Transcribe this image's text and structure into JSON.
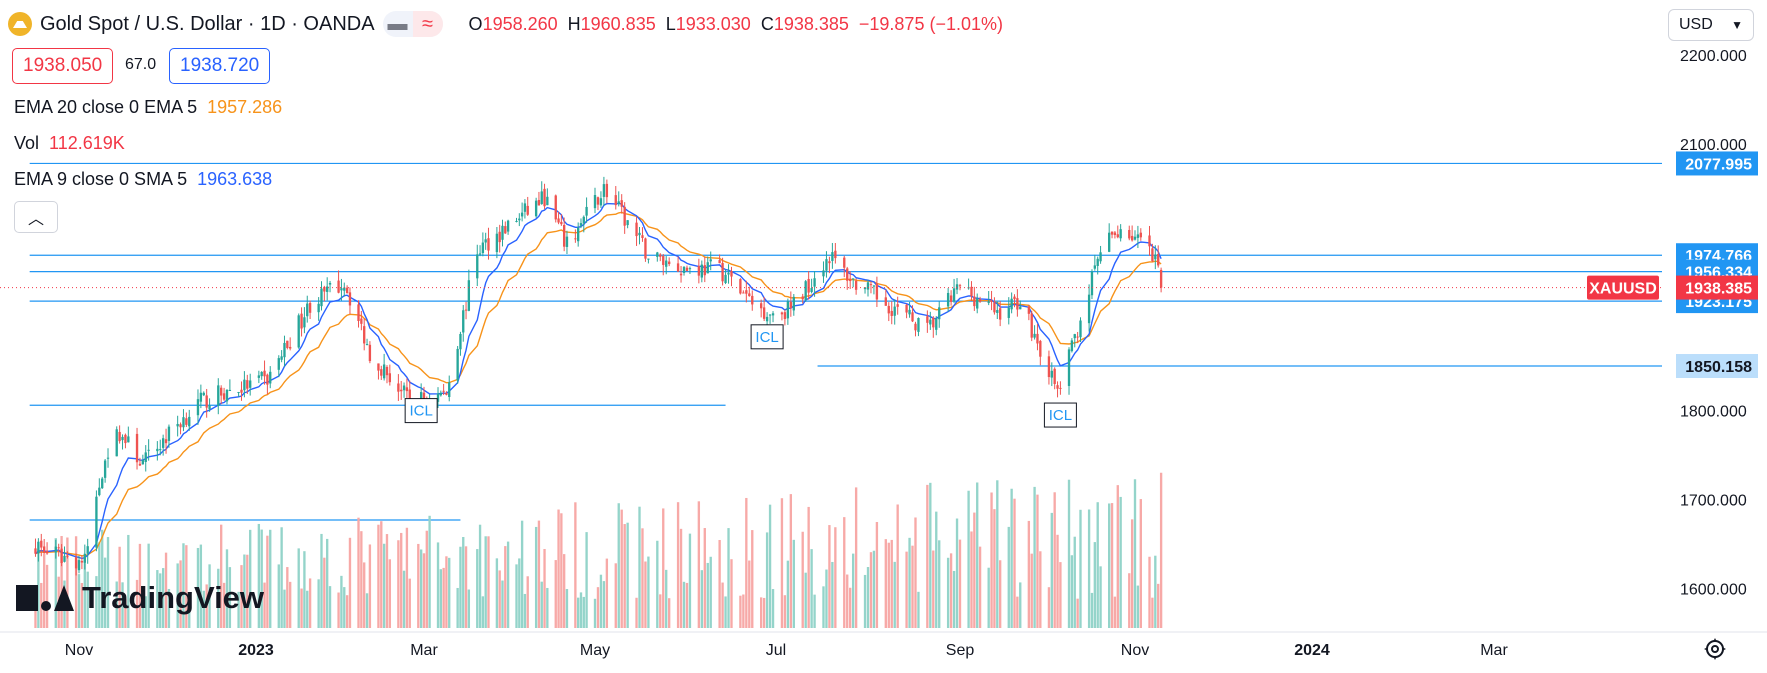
{
  "header": {
    "title": "Gold Spot / U.S. Dollar · 1D · OANDA",
    "ohlc": {
      "o_label": "O",
      "o": "1958.260",
      "h_label": "H",
      "h": "1960.835",
      "l_label": "L",
      "l": "1933.030",
      "c_label": "C",
      "c": "1938.385",
      "change": "−19.875 (−1.01%)"
    }
  },
  "quote": {
    "bid": "1938.050",
    "spread": "67.0",
    "ask": "1938.720"
  },
  "legend": {
    "ema1": {
      "label": "EMA 20 close 0 EMA 5",
      "value": "1957.286",
      "color": "#f7931a"
    },
    "vol": {
      "label": "Vol",
      "value": "112.619K",
      "color": "#f23645"
    },
    "ema2": {
      "label": "EMA 9 close 0 SMA 5",
      "value": "1963.638",
      "color": "#2962ff"
    }
  },
  "currency": "USD",
  "watermark": "TradingView",
  "colors": {
    "up": "#26a69a",
    "down": "#ef5350",
    "ema20": "#f7931a",
    "ema9": "#2962ff",
    "hline": "#2196f3",
    "volUp": "#94d4ca",
    "volDown": "#f7a9a7"
  },
  "chart_data": {
    "type": "candlestick",
    "title": "Gold Spot / U.S. Dollar · 1D · OANDA",
    "ylim": [
      1550,
      2230
    ],
    "y_ticks": [
      {
        "value": 2200,
        "label": "2200.000"
      },
      {
        "value": 2100,
        "label": "2100.000"
      },
      {
        "value": 1800,
        "label": "1800.000"
      },
      {
        "value": 1700,
        "label": "1700.000"
      },
      {
        "value": 1600,
        "label": "1600.000"
      }
    ],
    "x_ticks": [
      "Nov",
      "2023",
      "Mar",
      "May",
      "Jul",
      "Sep",
      "Nov",
      "2024",
      "Mar"
    ],
    "x_tick_dates": [
      "2022-11-01",
      "2023-01-01",
      "2023-03-01",
      "2023-05-01",
      "2023-07-01",
      "2023-09-01",
      "2023-11-01",
      "2024-01-01",
      "2024-03-01"
    ],
    "price_key_points": [
      [
        "2022-10-17",
        1650
      ],
      [
        "2022-10-21",
        1640
      ],
      [
        "2022-11-03",
        1630
      ],
      [
        "2022-11-10",
        1750
      ],
      [
        "2022-11-15",
        1775
      ],
      [
        "2022-11-23",
        1740
      ],
      [
        "2022-12-05",
        1785
      ],
      [
        "2022-12-13",
        1810
      ],
      [
        "2022-12-21",
        1820
      ],
      [
        "2023-01-05",
        1835
      ],
      [
        "2023-01-20",
        1920
      ],
      [
        "2023-02-01",
        1945
      ],
      [
        "2023-02-10",
        1865
      ],
      [
        "2023-02-24",
        1810
      ],
      [
        "2023-03-09",
        1820
      ],
      [
        "2023-03-20",
        1980
      ],
      [
        "2023-04-05",
        2020
      ],
      [
        "2023-04-13",
        2040
      ],
      [
        "2023-04-21",
        1985
      ],
      [
        "2023-05-04",
        2050
      ],
      [
        "2023-05-19",
        1975
      ],
      [
        "2023-05-31",
        1960
      ],
      [
        "2023-06-12",
        1960
      ],
      [
        "2023-06-23",
        1920
      ],
      [
        "2023-06-29",
        1910
      ],
      [
        "2023-07-06",
        1915
      ],
      [
        "2023-07-19",
        1975
      ],
      [
        "2023-07-27",
        1945
      ],
      [
        "2023-08-10",
        1915
      ],
      [
        "2023-08-21",
        1890
      ],
      [
        "2023-09-01",
        1940
      ],
      [
        "2023-09-14",
        1910
      ],
      [
        "2023-09-22",
        1925
      ],
      [
        "2023-10-05",
        1820
      ],
      [
        "2023-10-09",
        1860
      ],
      [
        "2023-10-20",
        1980
      ],
      [
        "2023-10-27",
        2005
      ],
      [
        "2023-11-03",
        1990
      ],
      [
        "2023-11-09",
        1960
      ],
      [
        "2023-11-10",
        1938.385
      ]
    ],
    "volume_range": [
      40000,
      220000
    ],
    "horizontal_lines": [
      {
        "value": 2077.995,
        "label": "2077.995",
        "start": "2022-10-15",
        "style": "solid"
      },
      {
        "value": 1974.766,
        "label": "1974.766",
        "start": "2022-10-15",
        "style": "solid"
      },
      {
        "value": 1956.334,
        "label": "1956.334",
        "start": "2022-10-15",
        "style": "solid"
      },
      {
        "value": 1923.175,
        "label": "1923.175",
        "start": "2022-10-15",
        "style": "solid"
      },
      {
        "value": 1850.158,
        "label": "1850.158",
        "start": "2023-07-15",
        "style": "solid"
      },
      {
        "value": 1806,
        "label": "",
        "start": "2022-10-15",
        "end": "2023-06-14",
        "style": "solid"
      }
    ],
    "last_price": {
      "symbol": "XAUUSD",
      "value": "1938.385"
    },
    "volume_level_line": {
      "date_start": "2022-10-15",
      "date_end": "2023-03-14"
    },
    "annotations": [
      {
        "text": "ICL",
        "date": "2023-02-28",
        "value": 1800
      },
      {
        "text": "ICL",
        "date": "2023-06-28",
        "value": 1883
      },
      {
        "text": "ICL",
        "date": "2023-10-06",
        "value": 1795
      }
    ]
  }
}
